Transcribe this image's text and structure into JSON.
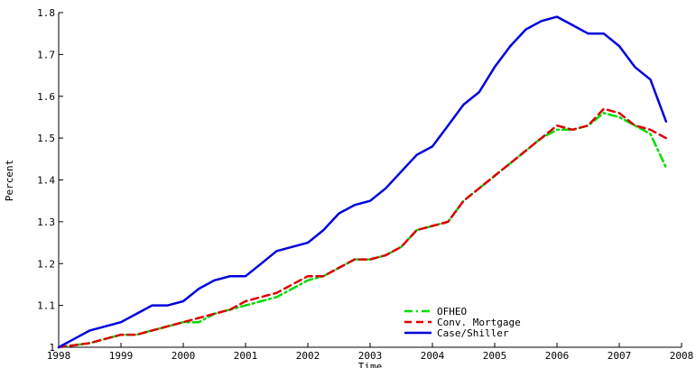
{
  "chart_data": {
    "type": "line",
    "title": "",
    "xlabel": "Time",
    "ylabel": "Percent",
    "xlim": [
      1998,
      2008
    ],
    "ylim": [
      1.0,
      1.8
    ],
    "grid": false,
    "legend_position": "bottom-center",
    "x_ticks": [
      "1998",
      "1999",
      "2000",
      "2001",
      "2002",
      "2003",
      "2004",
      "2005",
      "2006",
      "2007",
      "2008"
    ],
    "y_ticks": [
      "1",
      "1.1",
      "1.2",
      "1.3",
      "1.4",
      "1.5",
      "1.6",
      "1.7",
      "1.8"
    ],
    "x": [
      1998.0,
      1998.25,
      1998.5,
      1998.75,
      1999.0,
      1999.25,
      1999.5,
      1999.75,
      2000.0,
      2000.25,
      2000.5,
      2000.75,
      2001.0,
      2001.25,
      2001.5,
      2001.75,
      2002.0,
      2002.25,
      2002.5,
      2002.75,
      2003.0,
      2003.25,
      2003.5,
      2003.75,
      2004.0,
      2004.25,
      2004.5,
      2004.75,
      2005.0,
      2005.25,
      2005.5,
      2005.75,
      2006.0,
      2006.25,
      2006.5,
      2006.75,
      2007.0,
      2007.25,
      2007.5,
      2007.75
    ],
    "series": [
      {
        "name": "OFHEO",
        "color": "#00dd00",
        "dash": "dash-dot",
        "values": [
          1.0,
          1.005,
          1.01,
          1.02,
          1.03,
          1.03,
          1.04,
          1.05,
          1.06,
          1.06,
          1.08,
          1.09,
          1.1,
          1.11,
          1.12,
          1.14,
          1.16,
          1.17,
          1.19,
          1.21,
          1.21,
          1.22,
          1.24,
          1.28,
          1.29,
          1.3,
          1.35,
          1.38,
          1.41,
          1.44,
          1.47,
          1.5,
          1.52,
          1.52,
          1.53,
          1.56,
          1.55,
          1.53,
          1.51,
          1.43
        ]
      },
      {
        "name": "Conv. Mortgage",
        "color": "#dd0000",
        "dash": "dashed",
        "values": [
          1.0,
          1.005,
          1.01,
          1.02,
          1.03,
          1.03,
          1.04,
          1.05,
          1.06,
          1.07,
          1.08,
          1.09,
          1.11,
          1.12,
          1.13,
          1.15,
          1.17,
          1.17,
          1.19,
          1.21,
          1.21,
          1.22,
          1.24,
          1.28,
          1.29,
          1.3,
          1.35,
          1.38,
          1.41,
          1.44,
          1.47,
          1.5,
          1.53,
          1.52,
          1.53,
          1.57,
          1.56,
          1.53,
          1.52,
          1.5
        ]
      },
      {
        "name": "Case/Shiller",
        "color": "#0000dd",
        "dash": "solid",
        "values": [
          1.0,
          1.02,
          1.04,
          1.05,
          1.06,
          1.08,
          1.1,
          1.1,
          1.11,
          1.14,
          1.16,
          1.17,
          1.17,
          1.2,
          1.23,
          1.24,
          1.25,
          1.28,
          1.32,
          1.34,
          1.35,
          1.38,
          1.42,
          1.46,
          1.48,
          1.53,
          1.58,
          1.61,
          1.67,
          1.72,
          1.76,
          1.78,
          1.79,
          1.77,
          1.75,
          1.75,
          1.72,
          1.67,
          1.64,
          1.54
        ]
      }
    ]
  }
}
